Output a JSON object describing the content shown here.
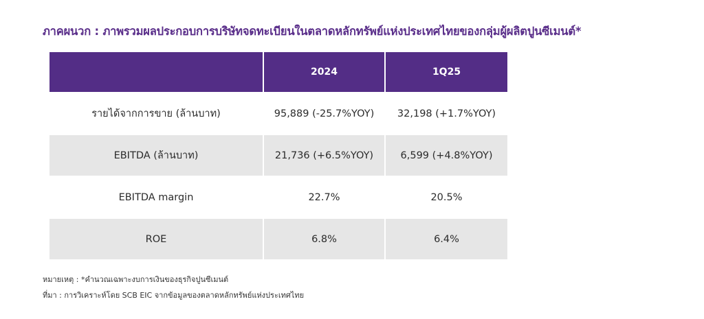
{
  "title": "ภาคผนวก : ภาพรวมผลประกอบการบริษัทจดทะเบียนในตลาดหลักทรัพย์แห่งประเทศไทยของกลุ่มผู้ผลิตปูนซีเมนต์*",
  "table": {
    "columns": [
      "",
      "2024",
      "1Q25"
    ],
    "rows": [
      {
        "label": "รายได้จากการขาย (ล้านบาท)",
        "v2024": "95,889 (-25.7%YOY)",
        "v1q25": "32,198 (+1.7%YOY)"
      },
      {
        "label": "EBITDA (ล้านบาท)",
        "v2024": "21,736 (+6.5%YOY)",
        "v1q25": "6,599 (+4.8%YOY)"
      },
      {
        "label": "EBITDA margin",
        "v2024": "22.7%",
        "v1q25": "20.5%"
      },
      {
        "label": "ROE",
        "v2024": "6.8%",
        "v1q25": "6.4%"
      }
    ]
  },
  "notes": {
    "remark": "หมายเหตุ : *คำนวณเฉพาะงบการเงินของธุรกิจปูนซีเมนต์",
    "source": "ที่มา : การวิเคราะห์โดย SCB EIC จากข้อมูลของตลาดหลักทรัพย์แห่งประเทศไทย"
  },
  "colors": {
    "title": "#5a2e8a",
    "header_bg": "#532d86",
    "shaded_row": "#e6e6e6"
  }
}
